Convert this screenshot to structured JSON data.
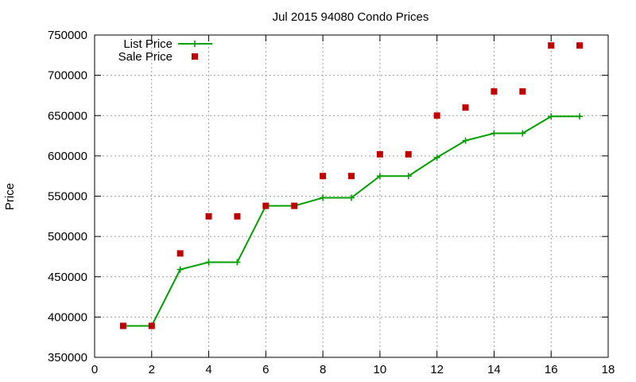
{
  "chart_data": {
    "type": "line",
    "title": "Jul 2015 94080 Condo Prices",
    "xlabel": "",
    "ylabel": "Price",
    "xlim": [
      0,
      18
    ],
    "ylim": [
      350000,
      750000
    ],
    "xticks": [
      0,
      2,
      4,
      6,
      8,
      10,
      12,
      14,
      16,
      18
    ],
    "yticks": [
      350000,
      400000,
      450000,
      500000,
      550000,
      600000,
      650000,
      700000,
      750000
    ],
    "grid": true,
    "legend_position": "top-left",
    "series": [
      {
        "name": "List Price",
        "style": "linespoints",
        "color": "#00a000",
        "x": [
          1,
          2,
          3,
          4,
          5,
          6,
          7,
          8,
          9,
          10,
          11,
          12,
          13,
          14,
          15,
          16,
          17
        ],
        "values": [
          389000,
          389000,
          459000,
          468000,
          468000,
          538000,
          538000,
          548000,
          548000,
          575000,
          575000,
          598000,
          619000,
          628000,
          628000,
          649000,
          649000
        ]
      },
      {
        "name": "Sale Price",
        "style": "points",
        "color": "#c00000",
        "x": [
          1,
          2,
          3,
          4,
          5,
          6,
          7,
          8,
          9,
          10,
          11,
          12,
          13,
          14,
          15,
          16,
          17
        ],
        "values": [
          389000,
          389000,
          479000,
          525000,
          525000,
          538000,
          538000,
          575000,
          575000,
          602000,
          602000,
          650000,
          660000,
          680000,
          680000,
          737000,
          737000
        ]
      }
    ]
  }
}
